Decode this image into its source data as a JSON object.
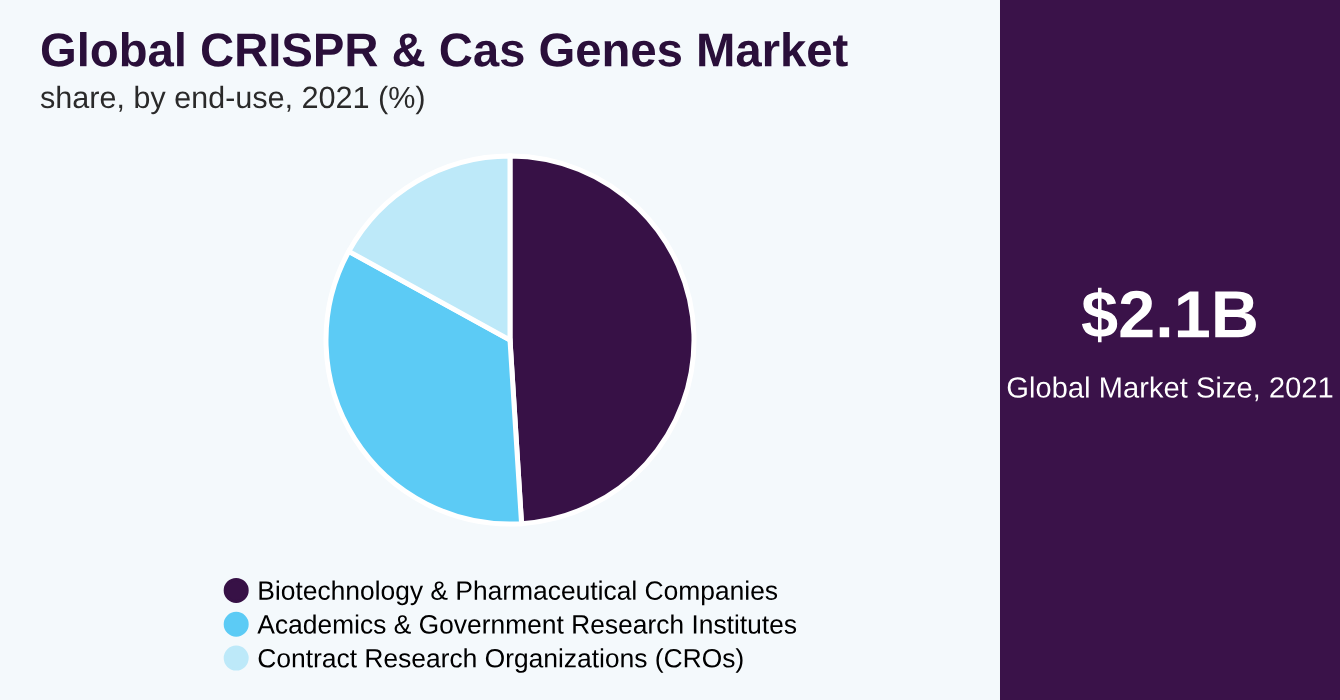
{
  "chart_data": [
    {
      "type": "pie",
      "title": "Global CRISPR & Cas Genes Market",
      "subtitle": "share, by end-use, 2021 (%)",
      "categories": [
        "Biotechnology & Pharmaceutical Companies",
        "Academics & Government Research Institutes",
        "Contract Research Organizations (CROs)"
      ],
      "values": [
        49,
        34,
        17
      ],
      "colors": [
        "#371146",
        "#5ccbf5",
        "#bde9f9"
      ],
      "legend": "bottom"
    },
    {
      "type": "other",
      "title": "$2.1B",
      "subtitle": "Global Market Size, 2021"
    }
  ]
}
